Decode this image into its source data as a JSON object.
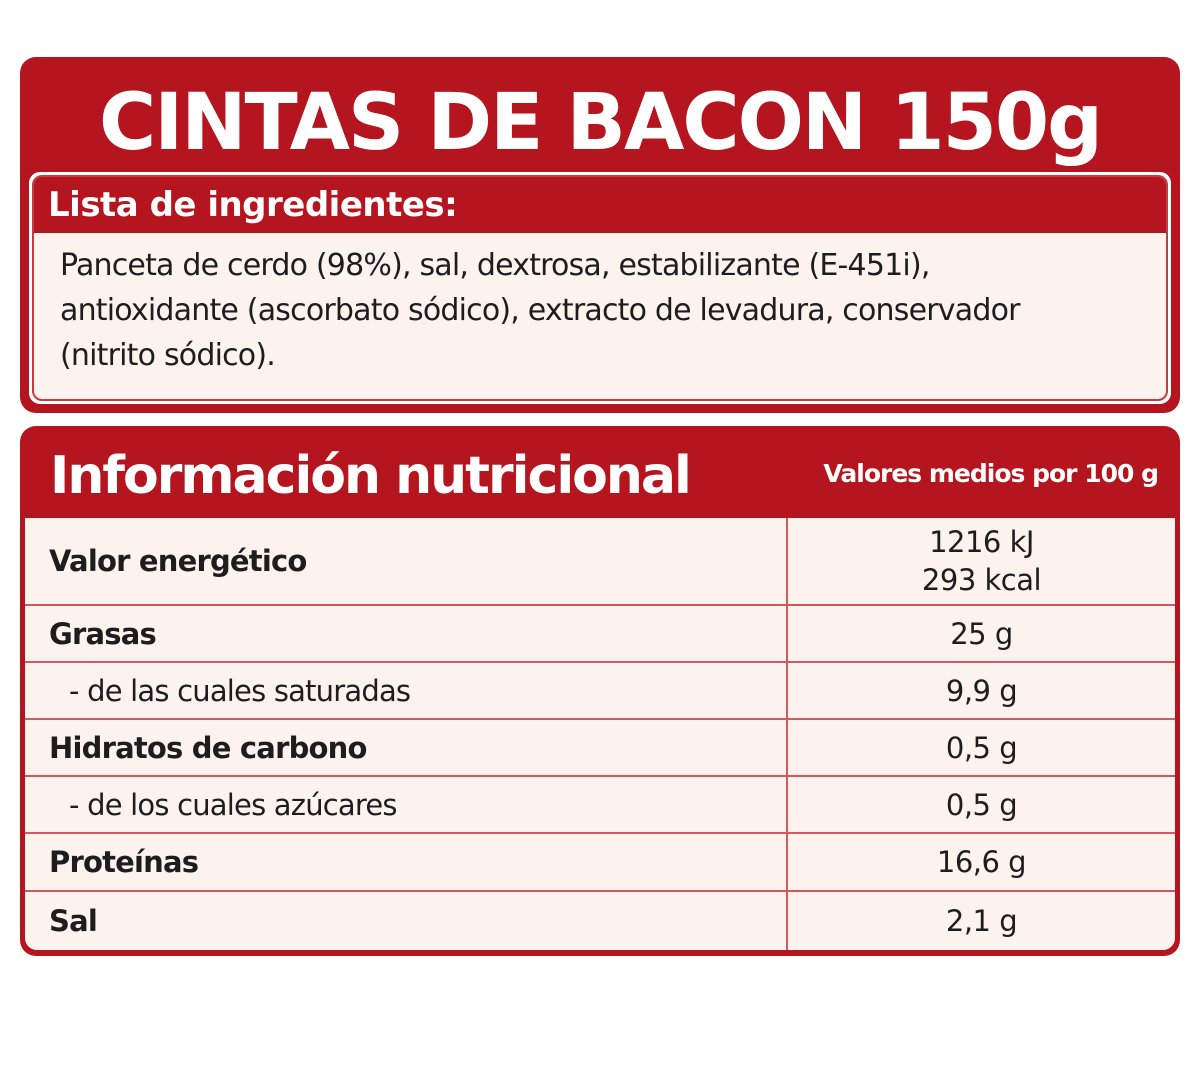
{
  "product_title": "CINTAS DE BACON 150g",
  "ingredients": {
    "heading": "Lista de ingredientes:",
    "lines": [
      "Panceta de cerdo (98%), sal, dextrosa, estabilizante (E-451i),",
      "antioxidante (ascorbato sódico), extracto de levadura, conservador",
      "(nitrito sódico)."
    ]
  },
  "nutrition": {
    "title": "Información nutricional",
    "subtitle": "Valores medios por 100 g",
    "rows": [
      {
        "label": "Valor energético",
        "value": "1216 kJ",
        "value2": "293 kcal"
      },
      {
        "label": "Grasas",
        "value": "25 g"
      },
      {
        "label": "- de las cuales saturadas",
        "value": "9,9 g"
      },
      {
        "label": "Hidratos de carbono",
        "value": "0,5 g"
      },
      {
        "label": "- de los cuales azúcares",
        "value": "0,5 g"
      },
      {
        "label": "Proteínas",
        "value": "16,6 g"
      },
      {
        "label": "Sal",
        "value": "2,1 g"
      }
    ]
  },
  "colors": {
    "brand_red": "#b4151f",
    "panel_cream": "#fdf3ee",
    "divider": "#cf5a5f"
  }
}
